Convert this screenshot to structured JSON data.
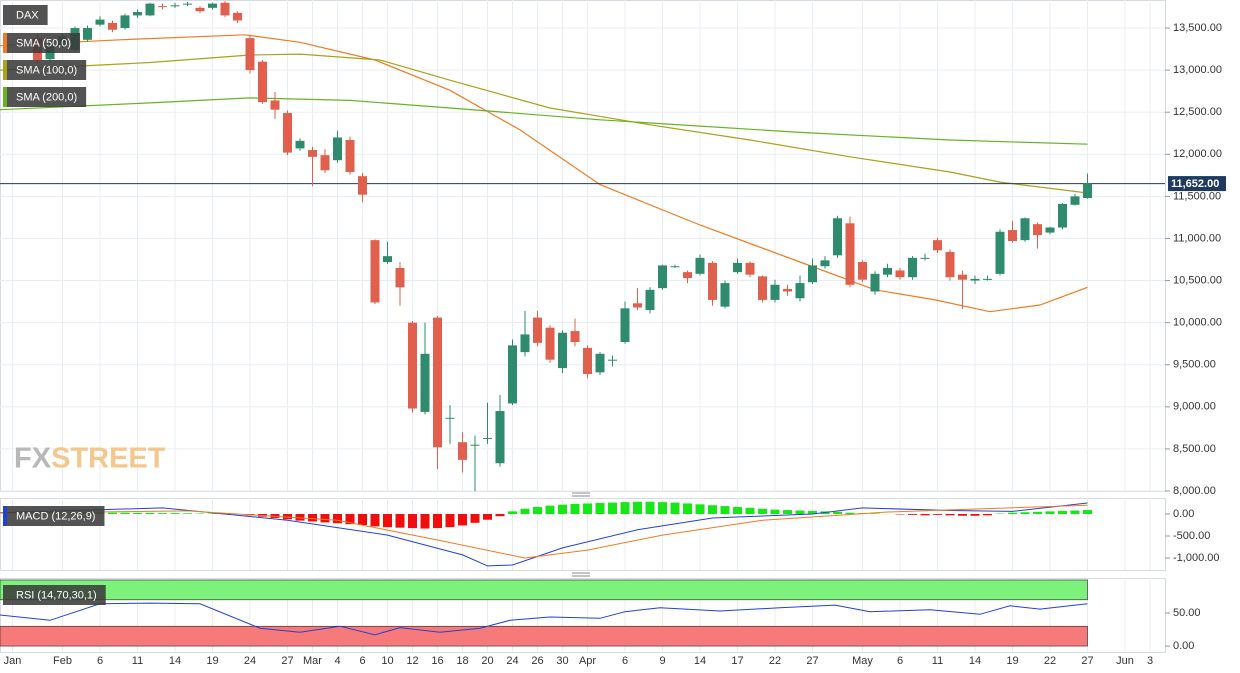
{
  "chart_data": [
    {
      "type": "candlestick",
      "title": "DAX",
      "x": [
        2,
        3,
        4,
        5,
        6,
        7,
        8,
        9,
        10,
        11,
        12,
        13,
        14,
        15,
        16,
        17,
        18,
        19,
        20,
        21,
        22,
        23,
        24,
        25,
        26,
        27,
        28,
        29,
        30,
        31,
        32,
        33,
        34,
        35,
        36,
        37,
        38,
        39,
        40,
        41,
        42,
        43,
        44,
        45,
        46,
        47,
        48,
        49,
        50,
        51,
        52,
        53,
        54,
        55,
        56,
        57,
        58,
        59,
        60,
        61,
        62,
        63,
        64,
        65,
        66,
        67,
        68,
        69,
        70,
        71,
        72,
        73,
        74,
        75,
        76,
        77,
        78,
        79,
        80,
        81,
        82,
        83,
        84,
        85,
        86
      ],
      "open": [
        13380,
        13130,
        13300,
        13240,
        13360,
        13540,
        13560,
        13500,
        13650,
        13650,
        13760,
        13770,
        13780,
        13740,
        13740,
        13800,
        13680,
        13380,
        13100,
        12640,
        12490,
        12070,
        12050,
        11990,
        11930,
        12170,
        11740,
        10980,
        10720,
        10650,
        10000,
        8940,
        10060,
        8870,
        8580,
        8540,
        8630,
        8330,
        9040,
        9650,
        10060,
        9940,
        9460,
        9900,
        9700,
        9410,
        9560,
        9770,
        10230,
        10150,
        10410,
        10670,
        10600,
        10580,
        10710,
        10190,
        10600,
        10710,
        10550,
        10270,
        10400,
        10290,
        10480,
        10670,
        10800,
        11180,
        10720,
        10370,
        10570,
        10620,
        10540,
        10770,
        10980,
        10840,
        10570,
        10500,
        10520,
        10580,
        11100,
        10980,
        11170,
        11070,
        11130,
        11400,
        11480
      ],
      "high": [
        13420,
        13330,
        13430,
        13520,
        13530,
        13640,
        13590,
        13670,
        13720,
        13800,
        13790,
        13800,
        13810,
        13760,
        13800,
        13820,
        13700,
        13420,
        13120,
        12740,
        12520,
        12190,
        12090,
        12060,
        12280,
        12210,
        11780,
        10990,
        10960,
        10720,
        10020,
        10000,
        10080,
        9020,
        8700,
        8660,
        9050,
        9140,
        9800,
        10140,
        10140,
        9970,
        9910,
        10050,
        9730,
        9650,
        9610,
        10250,
        10410,
        10420,
        10690,
        10690,
        10620,
        10810,
        10730,
        10500,
        10760,
        10730,
        10560,
        10510,
        10450,
        10560,
        10760,
        10790,
        11270,
        11260,
        10740,
        10610,
        10700,
        10650,
        10790,
        10820,
        11010,
        10870,
        10620,
        10560,
        10560,
        11110,
        11210,
        11250,
        11190,
        11140,
        11420,
        11530,
        11770
      ],
      "low": [
        13080,
        13100,
        13260,
        13220,
        13340,
        13520,
        13450,
        13480,
        13620,
        13640,
        13720,
        13740,
        13760,
        13680,
        13720,
        13630,
        13560,
        12960,
        12600,
        12420,
        11990,
        12040,
        11620,
        11780,
        11900,
        11760,
        11430,
        10220,
        10700,
        10200,
        8930,
        8910,
        8260,
        8560,
        8220,
        8000,
        8560,
        8290,
        9020,
        9600,
        9720,
        9520,
        9400,
        9720,
        9340,
        9380,
        9480,
        9750,
        10150,
        10110,
        10390,
        10650,
        10470,
        10560,
        10200,
        10170,
        10580,
        10540,
        10240,
        10240,
        10320,
        10250,
        10460,
        10640,
        10770,
        10420,
        10480,
        10330,
        10540,
        10510,
        10510,
        10740,
        10830,
        10500,
        10160,
        10460,
        10500,
        10560,
        10950,
        10960,
        10880,
        11050,
        11110,
        11390,
        11470
      ],
      "close": [
        13120,
        13300,
        13400,
        13500,
        13500,
        13600,
        13480,
        13650,
        13690,
        13790,
        13750,
        13770,
        13790,
        13700,
        13790,
        13650,
        13590,
        13000,
        12620,
        12530,
        12020,
        12160,
        11970,
        11810,
        12200,
        11790,
        11520,
        10240,
        10790,
        10420,
        8980,
        9630,
        8520,
        8870,
        8370,
        8550,
        8630,
        8950,
        9730,
        9860,
        9760,
        9560,
        9880,
        9770,
        9390,
        9630,
        9560,
        10170,
        10180,
        10390,
        10680,
        10670,
        10530,
        10770,
        10270,
        10470,
        10710,
        10570,
        10270,
        10450,
        10370,
        10470,
        10680,
        10740,
        11240,
        10450,
        10510,
        10580,
        10650,
        10540,
        10770,
        10770,
        10860,
        10540,
        10510,
        10520,
        10520,
        11080,
        10970,
        11240,
        11040,
        11130,
        11410,
        11500,
        11652
      ],
      "up_color": "#2e8b6e",
      "down_color": "#e0604d",
      "overlays": [
        {
          "name": "SMA (50,0)",
          "color": "#f07c22",
          "x": [
            -1,
            8.6,
            18.6,
            23,
            29,
            35,
            40.6,
            47,
            55,
            63,
            69,
            73.8,
            78.2,
            82.2,
            86
          ],
          "values": [
            13290,
            13360,
            13420,
            13330,
            13120,
            12760,
            12290,
            11640,
            11160,
            10720,
            10390,
            10270,
            10130,
            10210,
            10420
          ]
        },
        {
          "name": "SMA (100,0)",
          "color": "#a8a318",
          "x": [
            -1,
            11,
            19,
            23,
            29.4,
            35,
            43,
            51,
            59,
            67,
            75,
            79,
            86
          ],
          "values": [
            13000,
            13090,
            13180,
            13190,
            13120,
            12880,
            12550,
            12350,
            12170,
            11970,
            11790,
            11670,
            11540
          ]
        },
        {
          "name": "SMA (200,0)",
          "color": "#66b422",
          "x": [
            -1,
            11,
            19,
            27,
            35,
            47,
            63,
            75,
            86
          ],
          "values": [
            12530,
            12610,
            12670,
            12640,
            12550,
            12410,
            12260,
            12170,
            12120
          ]
        }
      ],
      "last_price": {
        "value": 11652,
        "label": "11,652.00",
        "color": "#1f3a5f"
      },
      "watermark": {
        "prefix": "FX",
        "suffix": "STREET"
      },
      "xlim": [
        -1,
        92.2
      ],
      "ylim": [
        8000,
        13833
      ],
      "yticks": [
        {
          "value": 8000,
          "label": "8,000.00"
        },
        {
          "value": 8500,
          "label": "8,500.00"
        },
        {
          "value": 9000,
          "label": "9,000.00"
        },
        {
          "value": 9500,
          "label": "9,500.00"
        },
        {
          "value": 10000,
          "label": "10,000.00"
        },
        {
          "value": 10500,
          "label": "10,500.00"
        },
        {
          "value": 11000,
          "label": "11,000.00"
        },
        {
          "value": 11500,
          "label": "11,500.00"
        },
        {
          "value": 12000,
          "label": "12,000.00"
        },
        {
          "value": 12500,
          "label": "12,500.00"
        },
        {
          "value": 13000,
          "label": "13,000.00"
        },
        {
          "value": 13500,
          "label": "13,500.00"
        }
      ],
      "grid": true
    },
    {
      "type": "macd",
      "title": "MACD (12,26,9)",
      "x": [
        2,
        3,
        4,
        5,
        6,
        7,
        8,
        9,
        10,
        11,
        12,
        13,
        14,
        15,
        16,
        17,
        18,
        19,
        20,
        21,
        22,
        23,
        24,
        25,
        26,
        27,
        28,
        29,
        30,
        31,
        32,
        33,
        34,
        35,
        36,
        37,
        38,
        39,
        40,
        41,
        42,
        43,
        44,
        45,
        46,
        47,
        48,
        49,
        50,
        51,
        52,
        53,
        54,
        55,
        56,
        57,
        58,
        59,
        60,
        61,
        62,
        63,
        64,
        65,
        66,
        67,
        68,
        69,
        70,
        71,
        72,
        73,
        74,
        75,
        76,
        77,
        78,
        79,
        80,
        81,
        82,
        83,
        84,
        85,
        86
      ],
      "histogram": {
        "up_color": "#19e619",
        "down_color": "#f20d0d",
        "values": [
          20,
          20,
          25,
          25,
          30,
          30,
          30,
          30,
          25,
          25,
          20,
          20,
          15,
          10,
          10,
          5,
          0,
          -30,
          -60,
          -90,
          -120,
          -150,
          -170,
          -190,
          -210,
          -230,
          -250,
          -280,
          -300,
          -310,
          -320,
          -330,
          -320,
          -300,
          -260,
          -200,
          -130,
          -50,
          60,
          120,
          160,
          190,
          210,
          230,
          240,
          250,
          260,
          270,
          280,
          280,
          270,
          260,
          240,
          220,
          200,
          180,
          160,
          140,
          120,
          100,
          90,
          80,
          70,
          60,
          50,
          30,
          20,
          10,
          0,
          -10,
          -20,
          -30,
          -20,
          -30,
          -40,
          -40,
          -30,
          10,
          30,
          40,
          50,
          60,
          70,
          80,
          90
        ]
      },
      "series": [
        {
          "color": "#2340d8",
          "x": [
            -1,
            12,
            22,
            30,
            36,
            38,
            40,
            44,
            50,
            56,
            64,
            68,
            75,
            80,
            86
          ],
          "values": [
            30,
            140,
            -140,
            -480,
            -930,
            -1180,
            -1160,
            -770,
            -360,
            -90,
            0,
            140,
            80,
            60,
            250
          ]
        },
        {
          "color": "#f07c22",
          "x": [
            -1,
            14,
            26,
            34,
            41,
            46,
            52,
            60,
            70,
            86
          ],
          "values": [
            20,
            70,
            -140,
            -590,
            -1000,
            -820,
            -480,
            -140,
            45,
            200
          ]
        }
      ],
      "xlim": [
        -1,
        92.2
      ],
      "ylim": [
        -1273,
        364
      ],
      "yticks": [
        {
          "value": 0,
          "label": "0.00"
        },
        {
          "value": -500,
          "label": "-500.00"
        },
        {
          "value": -1000,
          "label": "-1,000.00"
        }
      ]
    },
    {
      "type": "line",
      "title": "RSI (14,70,30,1)",
      "series": [
        {
          "color": "#2340d8",
          "x": [
            -1,
            3,
            7,
            11,
            15,
            19.8,
            23,
            26.2,
            29,
            31,
            34.2,
            37.4,
            39.8,
            43,
            47,
            49,
            51.8,
            56.6,
            61.4,
            65.8,
            68.6,
            73.4,
            77.4,
            79.8,
            82.2,
            86
          ],
          "values": [
            47,
            39,
            64,
            65,
            64,
            27,
            21,
            30,
            17,
            28,
            21,
            27,
            39,
            44,
            42,
            52,
            58,
            53,
            58,
            62,
            52,
            55,
            48,
            61,
            56,
            64
          ]
        }
      ],
      "bands": [
        {
          "from": 70,
          "to": 100,
          "color": "#7cf27c"
        },
        {
          "from": 0,
          "to": 30,
          "color": "#f77a7a"
        }
      ],
      "xlim": [
        -1,
        92.2
      ],
      "ylim": [
        -9,
        103
      ],
      "yticks": [
        {
          "value": 0,
          "label": "0.00"
        },
        {
          "value": 50,
          "label": "50.00"
        }
      ],
      "xticks": [
        {
          "value": 0,
          "label": "Jan"
        },
        {
          "value": 4,
          "label": "Feb"
        },
        {
          "value": 7,
          "label": "6"
        },
        {
          "value": 10,
          "label": "11"
        },
        {
          "value": 13,
          "label": "14"
        },
        {
          "value": 16,
          "label": "19"
        },
        {
          "value": 19,
          "label": "24"
        },
        {
          "value": 22,
          "label": "27"
        },
        {
          "value": 24,
          "label": "Mar"
        },
        {
          "value": 26,
          "label": "4"
        },
        {
          "value": 28,
          "label": "6"
        },
        {
          "value": 30,
          "label": "10"
        },
        {
          "value": 32,
          "label": "12"
        },
        {
          "value": 34,
          "label": "16"
        },
        {
          "value": 36,
          "label": "18"
        },
        {
          "value": 38,
          "label": "20"
        },
        {
          "value": 40,
          "label": "24"
        },
        {
          "value": 42,
          "label": "26"
        },
        {
          "value": 44,
          "label": "30"
        },
        {
          "value": 46,
          "label": "Apr"
        },
        {
          "value": 49,
          "label": "6"
        },
        {
          "value": 52,
          "label": "9"
        },
        {
          "value": 55,
          "label": "14"
        },
        {
          "value": 58,
          "label": "17"
        },
        {
          "value": 61,
          "label": "22"
        },
        {
          "value": 64,
          "label": "27"
        },
        {
          "value": 68,
          "label": "May"
        },
        {
          "value": 71,
          "label": "6"
        },
        {
          "value": 74,
          "label": "11"
        },
        {
          "value": 77,
          "label": "14"
        },
        {
          "value": 80,
          "label": "19"
        },
        {
          "value": 83,
          "label": "22"
        },
        {
          "value": 86,
          "label": "27"
        },
        {
          "value": 89,
          "label": "Jun"
        },
        {
          "value": 91,
          "label": "3"
        }
      ]
    }
  ]
}
